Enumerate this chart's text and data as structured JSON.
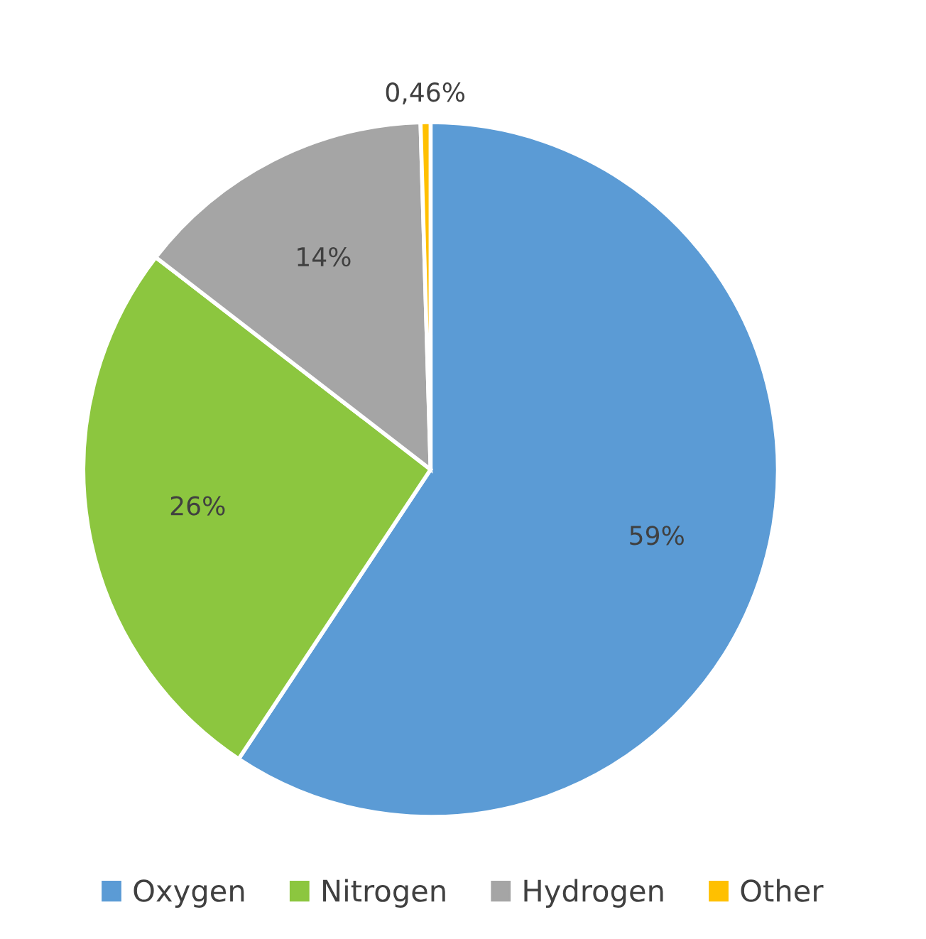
{
  "chart_data": {
    "type": "pie",
    "categories": [
      "Oxygen",
      "Nitrogen",
      "Hydrogen",
      "Other"
    ],
    "values": [
      59,
      26,
      14,
      0.46
    ],
    "colors": [
      "#5b9bd5",
      "#8cc63f",
      "#a5a5a5",
      "#ffc000"
    ],
    "value_labels": [
      "59%",
      "26%",
      "14%",
      "0,46%"
    ],
    "legend": "bottom"
  }
}
